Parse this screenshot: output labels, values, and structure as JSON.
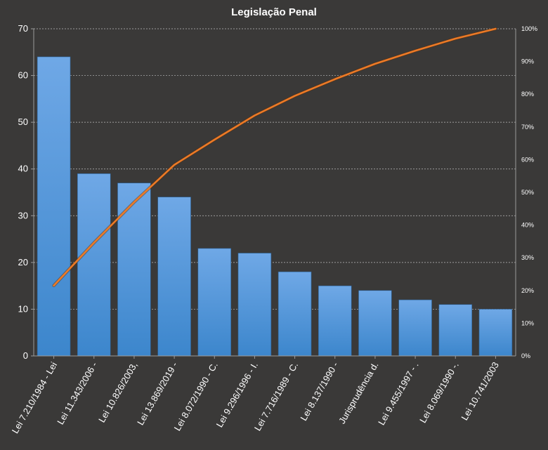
{
  "chart_data": {
    "type": "bar",
    "title": "Legislação Penal",
    "categories": [
      "Lei 7.210/1984 - Lei",
      "Lei 11.343/2006 -",
      "Lei 10.826/2003,",
      "Lei 13.869/2019 -",
      "Lei 8.072/1990 - C.",
      "Lei 9.296/1996 - I.",
      "Lei 7.716/1989 - C.",
      "Lei 8.137/1990 -",
      "Jurisprudência d.",
      "Lei 9.455/1997 - .",
      "Lei 8.069/1990 -.",
      "Lei 10.741/2003"
    ],
    "series": [
      {
        "type": "bar",
        "values": [
          64,
          39,
          37,
          34,
          23,
          22,
          18,
          15,
          14,
          12,
          11,
          10
        ]
      },
      {
        "type": "line",
        "axis": "secondary",
        "values": [
          21.5,
          34.6,
          47.0,
          58.4,
          66.1,
          73.5,
          79.5,
          84.6,
          89.3,
          93.3,
          97.0,
          100
        ]
      }
    ],
    "ylim": [
      0,
      70
    ],
    "yticks": [
      "0",
      "10",
      "20",
      "30",
      "40",
      "50",
      "60",
      "70"
    ],
    "y2lim": [
      0,
      100
    ],
    "y2ticks": [
      "0%",
      "10%",
      "20%",
      "30%",
      "40%",
      "50%",
      "60%",
      "70%",
      "80%",
      "90%",
      "100%"
    ],
    "grid": true,
    "legend": "none",
    "colors": {
      "bar_top": "#6fa8e6",
      "bar_bottom": "#3c86cc",
      "line": "#ec7a26",
      "background": "#3a3938",
      "grid": "#bdbdbd"
    }
  }
}
